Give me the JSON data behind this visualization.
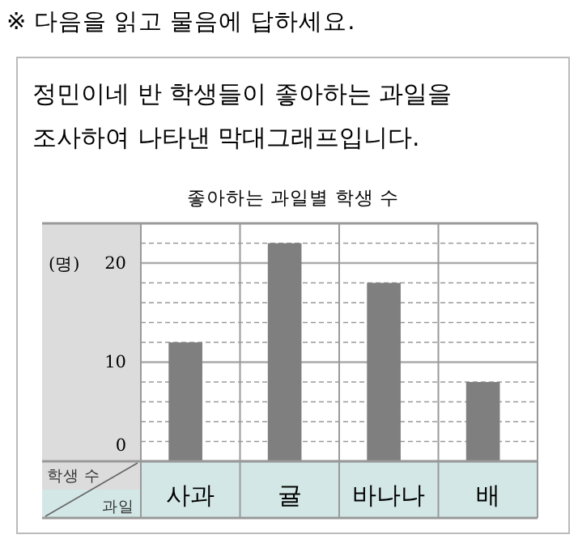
{
  "chart_data": {
    "type": "bar",
    "title": "좋아하는 과일별 학생 수",
    "subtitle": "정민이네 반 학생들이 좋아하는 과일을\n조사하여 나타낸 막대그래프입니다.",
    "annotations": [
      "※ 다음을 읽고 물음에 답하세요.",
      "학생 수"
    ],
    "ylabel": "(명)",
    "xlabel": "과일",
    "categories": [
      "사과",
      "귤",
      "바나나",
      "배"
    ],
    "values": [
      12,
      22,
      18,
      8
    ],
    "color": "#7f7f7f",
    "ylim": [
      0,
      24
    ],
    "yticks": [
      0,
      {
        "value": 2,
        "label": null
      },
      {
        "value": 4,
        "label": null
      },
      {
        "value": 6,
        "label": null
      },
      {
        "value": 8,
        "label": null
      },
      10,
      {
        "value": 12,
        "label": null
      },
      {
        "value": 14,
        "label": null
      },
      {
        "value": 16,
        "label": null
      },
      {
        "value": 18,
        "label": null
      },
      20,
      {
        "value": 22,
        "label": null
      }
    ],
    "grid": true
  }
}
